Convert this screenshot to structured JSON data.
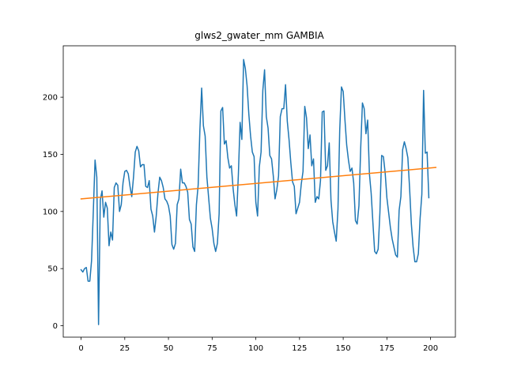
{
  "chart_data": {
    "type": "line",
    "title": "glws2_gwater_mm GAMBIA",
    "xlabel": "",
    "ylabel": "",
    "xlim": [
      -10.2,
      214.2
    ],
    "ylim": [
      -10,
      245
    ],
    "xticks": [
      0,
      25,
      50,
      75,
      100,
      125,
      150,
      175,
      200
    ],
    "yticks": [
      0,
      50,
      100,
      150,
      200
    ],
    "grid": false,
    "series": [
      {
        "name": "",
        "color": "#1f77b4",
        "x_start": 0,
        "values": [
          49,
          47,
          50,
          51,
          39,
          39,
          57,
          100,
          145,
          130,
          1,
          110,
          118,
          95,
          108,
          103,
          70,
          82,
          75,
          121,
          125,
          123,
          100,
          106,
          125,
          135,
          136,
          133,
          122,
          113,
          130,
          152,
          157,
          153,
          139,
          141,
          141,
          122,
          121,
          127,
          102,
          96,
          82,
          96,
          116,
          130,
          127,
          121,
          111,
          109,
          105,
          96,
          71,
          67,
          72,
          106,
          111,
          137,
          125,
          125,
          122,
          117,
          93,
          89,
          69,
          65,
          106,
          123,
          172,
          208,
          175,
          166,
          130,
          112,
          94,
          85,
          72,
          65,
          72,
          98,
          188,
          191,
          159,
          162,
          147,
          138,
          140,
          120,
          106,
          96,
          132,
          178,
          163,
          233,
          225,
          210,
          185,
          166,
          152,
          148,
          108,
          96,
          139,
          152,
          206,
          224,
          183,
          173,
          149,
          146,
          131,
          111,
          119,
          131,
          183,
          190,
          190,
          211,
          179,
          163,
          143,
          126,
          122,
          98,
          103,
          108,
          124,
          135,
          192,
          182,
          155,
          167,
          140,
          146,
          108,
          113,
          111,
          127,
          187,
          188,
          136,
          140,
          160,
          110,
          91,
          82,
          74,
          102,
          171,
          209,
          205,
          180,
          158,
          145,
          135,
          138,
          125,
          92,
          89,
          105,
          155,
          195,
          190,
          168,
          180,
          133,
          116,
          90,
          65,
          63,
          67,
          99,
          149,
          148,
          134,
          112,
          99,
          86,
          76,
          69,
          62,
          60,
          101,
          113,
          154,
          161,
          155,
          147,
          120,
          89,
          69,
          56,
          56,
          63,
          94,
          115,
          206,
          151,
          152,
          112
        ]
      },
      {
        "name": "",
        "color": "#ff7f0e",
        "trend": [
          [
            0,
            111
          ],
          [
            203,
            138.5
          ]
        ]
      }
    ]
  }
}
